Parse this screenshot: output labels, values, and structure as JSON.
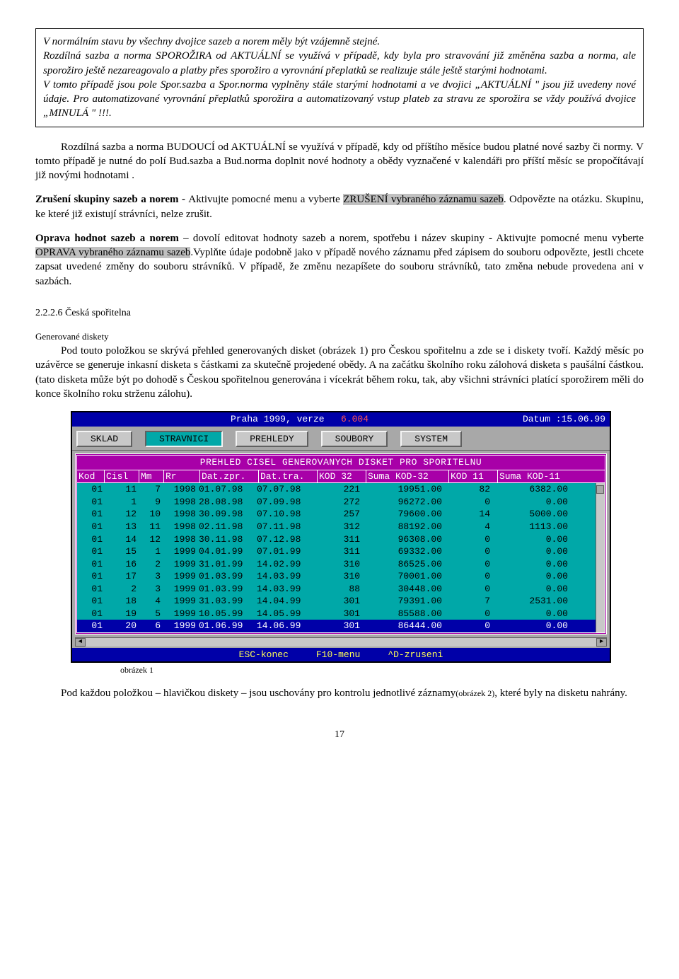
{
  "box": {
    "p1": "V normálním stavu by všechny dvojice sazeb a norem měly  být vzájemně stejné.",
    "p2": "Rozdílná sazba a norma SPOROŽIRA od AKTUÁLNÍ se využívá v případě,  kdy byla pro stravování již změněna  sazba a norma, ale sporožiro ještě nezareagovalo a  platby  přes sporožiro a vyrovnání přeplatků se realizuje stále ještě starými hodnotami.",
    "p3": "V tomto případě jsou pole Spor.sazba a Spor.norma vyplněny stále starými  hodnotami a ve dvojici „AKTUÁLNÍ \" jsou již uvedeny  nové údaje. Pro automatizované vyrovnání přeplatků  sporožira a automatizovaný vstup plateb za  stravu ze  sporožira se vždy používá dvojice „MINULÁ \" !!!."
  },
  "para1": "Rozdílná sazba a norma BUDOUCÍ od AKTUÁLNÍ  se využívá v případě, kdy od příštího měsíce budou  platné nové sazby či normy. V tomto případě je nutné do polí  Bud.sazba a Bud.norma doplnit nové hodnoty a obědy  vyznačené v kalendáři pro příští měsíc se propočítávají  již  novými  hodnotami .",
  "para2a": "Zrušení skupiny sazeb a norem - ",
  "para2b": "Aktivujte pomocné menu a vyberte ",
  "para2hl": "ZRUŠENÍ vybraného záznamu sazeb",
  "para2c": ". Odpovězte na otázku. Skupinu, ke které již existují strávníci, nelze zrušit.",
  "para3a": "Oprava hodnot sazeb a norem",
  "para3b": " – dovolí editovat hodnoty sazeb a  norem, spotřebu i název skupiny - Aktivujte pomocné menu vyberte ",
  "para3hl": "OPRAVA vybraného záznamu sazeb",
  "para3c": ".Vyplňte údaje podobně jako v případě nového záznamu před zápisem do souboru odpovězte, jestli chcete zapsat  uvedené změny do souboru strávníků. V případě, že změnu  nezapíšete do souboru strávníků, tato změna nebude provedena ani v sazbách.",
  "sec_num": "2.2.2.6    Česká spořitelna",
  "subhead": "Generované diskety",
  "para4": "Pod touto položkou se skrývá přehled generovaných disket (obrázek 1) pro Českou spořitelnu a zde se i diskety tvoří. Každý měsíc po uzávěrce se generuje inkasní disketa s částkami za skutečně projedené obědy. A na začátku školního roku zálohová disketa s paušální částkou. (tato disketa může být po dohodě s Českou spořitelnou generována i vícekrát během roku, tak, aby všichni strávníci platící sporožirem měli do konce školního roku strženu zálohu).",
  "caption": "obrázek 1",
  "para5a": "Pod každou položkou – hlavičkou diskety – jsou uschovány pro kontrolu jednotlivé záznamy",
  "para5b": "(obrázek 2)",
  "para5c": ", které byly na disketu nahrány.",
  "pagenum": "17",
  "app": {
    "title_left": "Praha 1999, verze",
    "title_ver": "6.004",
    "title_right": "Datum :15.06.99",
    "menu": [
      "SKLAD",
      "STRAVNICI",
      "PREHLEDY",
      "SOUBORY",
      "SYSTEM"
    ],
    "header": "PREHLED CISEL GENEROVANYCH DISKET PRO SPORITELNU",
    "cols": [
      "Kod",
      "Cisl",
      "Mm",
      "Rr",
      "Dat.zpr.",
      "Dat.tra.",
      "KOD 32",
      "Suma KOD-32",
      "KOD 11",
      "Suma KOD-11"
    ],
    "rows": [
      [
        "01",
        "11",
        "7",
        "1998",
        "01.07.98",
        "07.07.98",
        "221",
        "19951.00",
        "82",
        "6382.00"
      ],
      [
        "01",
        "1",
        "9",
        "1998",
        "28.08.98",
        "07.09.98",
        "272",
        "96272.00",
        "0",
        "0.00"
      ],
      [
        "01",
        "12",
        "10",
        "1998",
        "30.09.98",
        "07.10.98",
        "257",
        "79600.00",
        "14",
        "5000.00"
      ],
      [
        "01",
        "13",
        "11",
        "1998",
        "02.11.98",
        "07.11.98",
        "312",
        "88192.00",
        "4",
        "1113.00"
      ],
      [
        "01",
        "14",
        "12",
        "1998",
        "30.11.98",
        "07.12.98",
        "311",
        "96308.00",
        "0",
        "0.00"
      ],
      [
        "01",
        "15",
        "1",
        "1999",
        "04.01.99",
        "07.01.99",
        "311",
        "69332.00",
        "0",
        "0.00"
      ],
      [
        "01",
        "16",
        "2",
        "1999",
        "31.01.99",
        "14.02.99",
        "310",
        "86525.00",
        "0",
        "0.00"
      ],
      [
        "01",
        "17",
        "3",
        "1999",
        "01.03.99",
        "14.03.99",
        "310",
        "70001.00",
        "0",
        "0.00"
      ],
      [
        "01",
        "2",
        "3",
        "1999",
        "01.03.99",
        "14.03.99",
        "88",
        "30448.00",
        "0",
        "0.00"
      ],
      [
        "01",
        "18",
        "4",
        "1999",
        "31.03.99",
        "14.04.99",
        "301",
        "79391.00",
        "7",
        "2531.00"
      ],
      [
        "01",
        "19",
        "5",
        "1999",
        "10.05.99",
        "14.05.99",
        "301",
        "85588.00",
        "0",
        "0.00"
      ],
      [
        "01",
        "20",
        "6",
        "1999",
        "01.06.99",
        "14.06.99",
        "301",
        "86444.00",
        "0",
        "0.00"
      ]
    ],
    "sel": 11,
    "status": {
      "esc": "ESC-konec",
      "f10": "F10-menu",
      "d": "^D-zruseni"
    }
  }
}
